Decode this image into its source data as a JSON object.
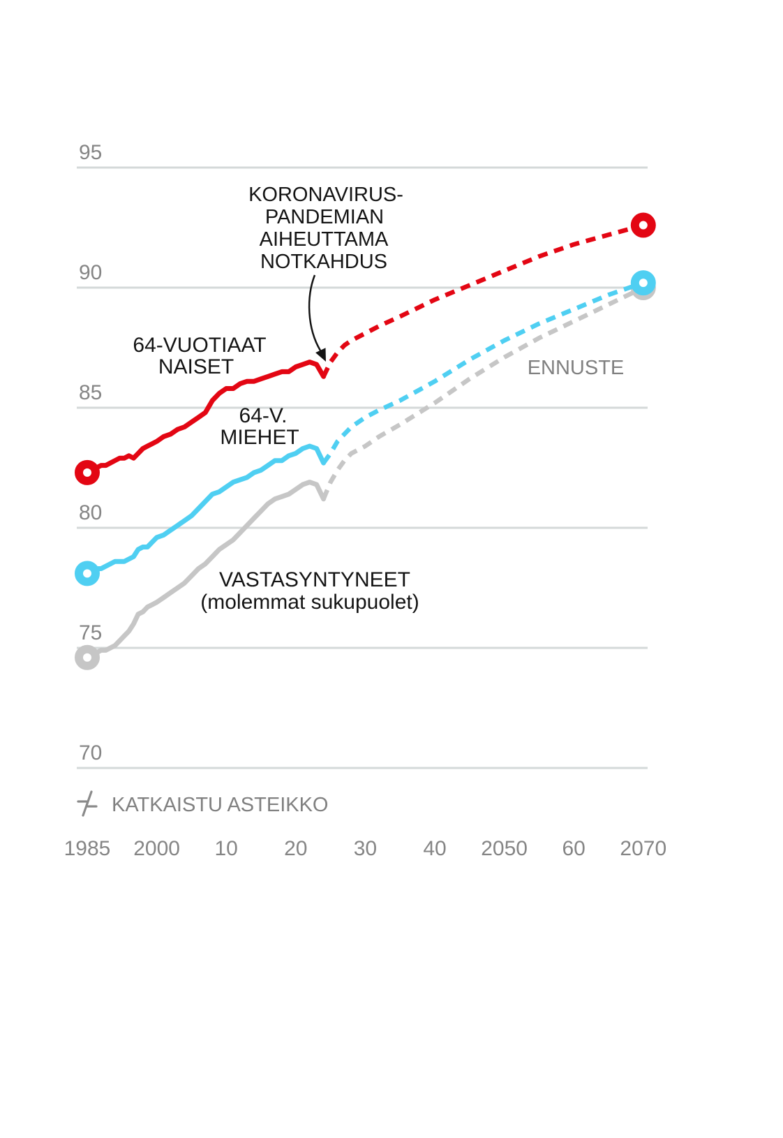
{
  "chart_data": {
    "type": "line",
    "ylim": [
      70,
      95
    ],
    "xlim": [
      1985,
      2070
    ],
    "grid": true,
    "y_ticks": [
      70,
      75,
      80,
      85,
      90,
      95
    ],
    "x_ticks": [
      1985,
      2000,
      2010,
      2020,
      2030,
      2040,
      2050,
      2060,
      2070
    ],
    "x_tick_labels": [
      "1985",
      "2000",
      "10",
      "20",
      "30",
      "40",
      "2050",
      "60",
      "2070"
    ],
    "series": [
      {
        "name": [
          "64-VUOTIAAT",
          "NAISET"
        ],
        "color": "#e30613",
        "observed": {
          "x": [
            1985,
            1986,
            1987,
            1988,
            1989,
            1990,
            1991,
            1992,
            1993,
            1994,
            1995,
            1996,
            1997,
            1998,
            1999,
            2000,
            2001,
            2002,
            2003,
            2004,
            2005,
            2006,
            2007,
            2008,
            2009,
            2010,
            2011,
            2012,
            2013,
            2014,
            2015,
            2016,
            2017,
            2018,
            2019,
            2020,
            2021,
            2022,
            2023,
            2024
          ],
          "y": [
            82.3,
            82.4,
            82.5,
            82.6,
            82.6,
            82.7,
            82.8,
            82.9,
            82.9,
            83.0,
            82.9,
            83.1,
            83.3,
            83.4,
            83.5,
            83.6,
            83.8,
            83.9,
            84.1,
            84.2,
            84.4,
            84.6,
            84.8,
            85.3,
            85.6,
            85.8,
            85.8,
            86.0,
            86.1,
            86.1,
            86.2,
            86.3,
            86.4,
            86.5,
            86.5,
            86.7,
            86.8,
            86.9,
            86.8,
            86.3
          ]
        },
        "forecast": {
          "x": [
            2024,
            2025,
            2026,
            2027,
            2028,
            2030,
            2032,
            2035,
            2040,
            2045,
            2050,
            2055,
            2060,
            2065,
            2070
          ],
          "y": [
            86.3,
            86.9,
            87.3,
            87.6,
            87.8,
            88.1,
            88.4,
            88.8,
            89.5,
            90.1,
            90.7,
            91.3,
            91.8,
            92.2,
            92.6
          ]
        }
      },
      {
        "name": [
          "64-V.",
          "MIEHET"
        ],
        "color": "#4fcff2",
        "observed": {
          "x": [
            1985,
            1986,
            1987,
            1988,
            1989,
            1990,
            1991,
            1992,
            1993,
            1994,
            1995,
            1996,
            1997,
            1998,
            1999,
            2000,
            2001,
            2002,
            2003,
            2004,
            2005,
            2006,
            2007,
            2008,
            2009,
            2010,
            2011,
            2012,
            2013,
            2014,
            2015,
            2016,
            2017,
            2018,
            2019,
            2020,
            2021,
            2022,
            2023,
            2024
          ],
          "y": [
            78.1,
            78.1,
            78.3,
            78.3,
            78.4,
            78.5,
            78.6,
            78.6,
            78.6,
            78.7,
            78.8,
            79.1,
            79.2,
            79.2,
            79.4,
            79.6,
            79.7,
            79.9,
            80.1,
            80.3,
            80.5,
            80.8,
            81.1,
            81.4,
            81.5,
            81.7,
            81.9,
            82.0,
            82.1,
            82.3,
            82.4,
            82.6,
            82.8,
            82.8,
            83.0,
            83.1,
            83.3,
            83.4,
            83.3,
            82.7
          ]
        },
        "forecast": {
          "x": [
            2024,
            2025,
            2026,
            2027,
            2028,
            2030,
            2032,
            2035,
            2040,
            2045,
            2050,
            2055,
            2060,
            2065,
            2070
          ],
          "y": [
            82.7,
            83.1,
            83.6,
            83.9,
            84.2,
            84.6,
            84.9,
            85.3,
            86.1,
            87.0,
            87.8,
            88.5,
            89.1,
            89.7,
            90.2
          ]
        }
      },
      {
        "name": [
          "VASTASYNTYNEET",
          "(molemmat sukupuolet)"
        ],
        "color": "#c6c6c6",
        "observed": {
          "x": [
            1985,
            1986,
            1987,
            1988,
            1989,
            1990,
            1991,
            1992,
            1993,
            1994,
            1995,
            1996,
            1997,
            1998,
            1999,
            2000,
            2001,
            2002,
            2003,
            2004,
            2005,
            2006,
            2007,
            2008,
            2009,
            2010,
            2011,
            2012,
            2013,
            2014,
            2015,
            2016,
            2017,
            2018,
            2019,
            2020,
            2021,
            2022,
            2023,
            2024
          ],
          "y": [
            74.6,
            74.7,
            74.8,
            74.9,
            74.9,
            75.0,
            75.1,
            75.3,
            75.5,
            75.7,
            76.0,
            76.4,
            76.5,
            76.7,
            76.8,
            76.9,
            77.1,
            77.3,
            77.5,
            77.7,
            78.0,
            78.3,
            78.5,
            78.8,
            79.1,
            79.3,
            79.5,
            79.8,
            80.1,
            80.4,
            80.7,
            81.0,
            81.2,
            81.3,
            81.4,
            81.6,
            81.8,
            81.9,
            81.8,
            81.2
          ]
        },
        "forecast": {
          "x": [
            2024,
            2025,
            2026,
            2027,
            2028,
            2030,
            2032,
            2035,
            2040,
            2045,
            2050,
            2055,
            2060,
            2065,
            2070
          ],
          "y": [
            81.2,
            81.9,
            82.4,
            82.8,
            83.1,
            83.4,
            83.8,
            84.3,
            85.2,
            86.2,
            87.1,
            87.9,
            88.6,
            89.3,
            90.0
          ]
        }
      }
    ],
    "annotations": {
      "pandemic_dip": [
        "KORONAVIRUS-",
        "PANDEMIAN",
        "AIHEUTTAMA",
        "NOTKAHDUS"
      ],
      "forecast_label": "ENNUSTE",
      "axis_break_note": "KATKAISTU ASTEIKKO",
      "axis_break_icon": "axis-break-icon",
      "arrow_icon": "arrow-down-icon"
    }
  }
}
